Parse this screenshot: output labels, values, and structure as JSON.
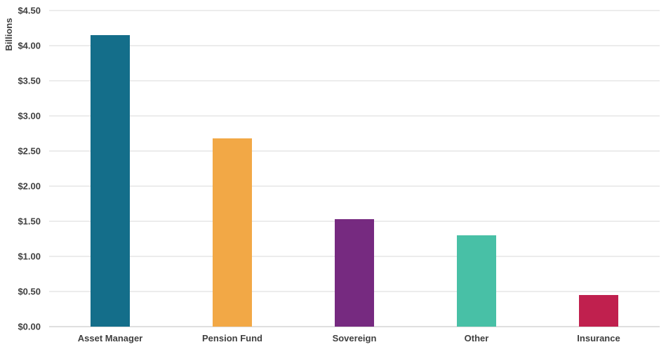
{
  "chart_data": {
    "type": "bar",
    "ylabel": "Billions",
    "ylim": [
      0,
      4.5
    ],
    "ytick_step": 0.5,
    "ytick_labels": [
      "$0.00",
      "$0.50",
      "$1.00",
      "$1.50",
      "$2.00",
      "$2.50",
      "$3.00",
      "$3.50",
      "$4.00",
      "$4.50"
    ],
    "categories": [
      "Asset Manager",
      "Pension Fund",
      "Sovereign",
      "Other",
      "Insurance"
    ],
    "values": [
      4.15,
      2.68,
      1.53,
      1.3,
      0.45
    ],
    "colors": [
      "#146e8a",
      "#f2a846",
      "#762a80",
      "#48c0a6",
      "#c0204e"
    ],
    "grid": true,
    "legend": "none"
  }
}
